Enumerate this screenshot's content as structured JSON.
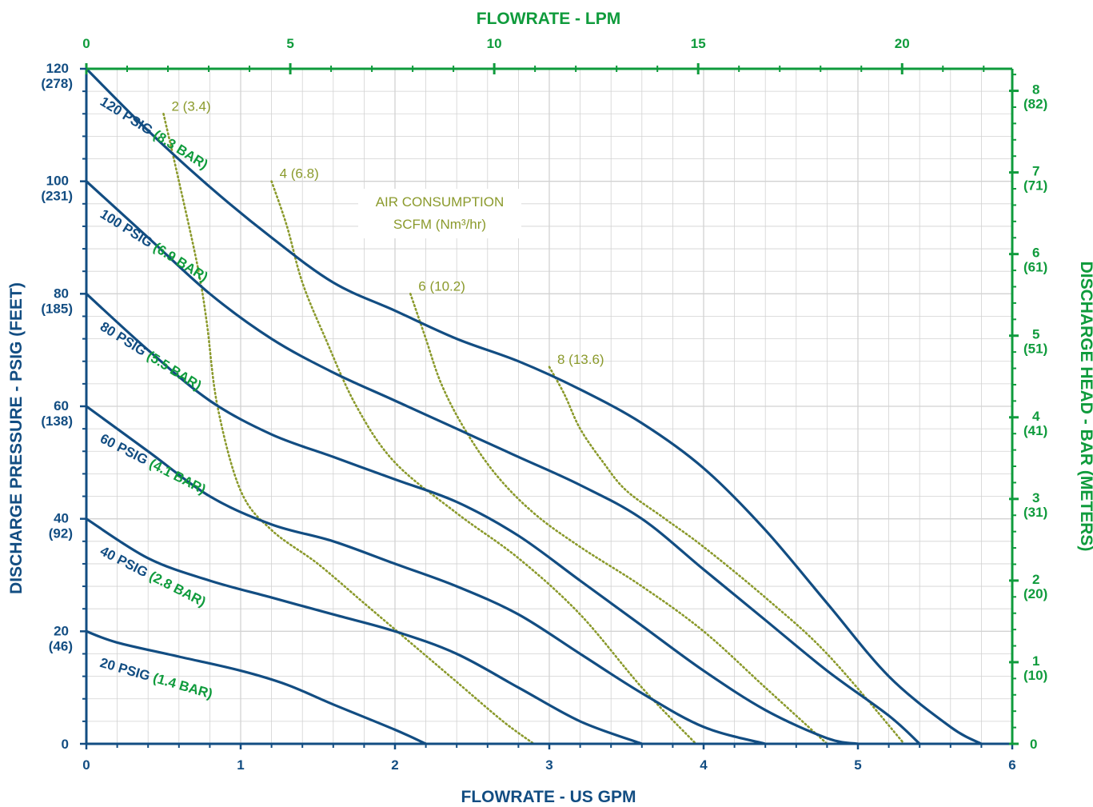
{
  "colors": {
    "blue": "#124d82",
    "green": "#0f9b3c",
    "olive": "#8b9a2c",
    "grid": "#d2d2d2"
  },
  "chart_data": {
    "type": "line",
    "xlabel": "FLOWRATE - US GPM",
    "x2label": "FLOWRATE - LPM",
    "ylabel": "DISCHARGE PRESSURE - PSIG (FEET)",
    "y2label": "DISCHARGE HEAD - BAR (METERS)",
    "xlim": [
      0,
      6
    ],
    "ylim": [
      0,
      120
    ],
    "x2lim": [
      0,
      22.7
    ],
    "y2lim": [
      0,
      8.27
    ],
    "grid": true,
    "x_ticks": [
      "0",
      "1",
      "2",
      "3",
      "4",
      "5",
      "6"
    ],
    "y_ticks": [
      {
        "value": 0,
        "line1": "0",
        "line2": ""
      },
      {
        "value": 20,
        "line1": "20",
        "line2": "(46)"
      },
      {
        "value": 40,
        "line1": "40",
        "line2": "(92)"
      },
      {
        "value": 60,
        "line1": "60",
        "line2": "(138)"
      },
      {
        "value": 80,
        "line1": "80",
        "line2": "(185)"
      },
      {
        "value": 100,
        "line1": "100",
        "line2": "(231)"
      },
      {
        "value": 120,
        "line1": "120",
        "line2": "(278)"
      }
    ],
    "x2_ticks": [
      "0",
      "5",
      "10",
      "15",
      "20"
    ],
    "y2_ticks": [
      {
        "value": 0,
        "line1": "0",
        "line2": ""
      },
      {
        "value": 1,
        "line1": "1",
        "line2": "(10)"
      },
      {
        "value": 2,
        "line1": "2",
        "line2": "(20)"
      },
      {
        "value": 3,
        "line1": "3",
        "line2": "(31)"
      },
      {
        "value": 4,
        "line1": "4",
        "line2": "(41)"
      },
      {
        "value": 5,
        "line1": "5",
        "line2": "(51)"
      },
      {
        "value": 6,
        "line1": "6",
        "line2": "(61)"
      },
      {
        "value": 7,
        "line1": "7",
        "line2": "(71)"
      },
      {
        "value": 8,
        "line1": "8",
        "line2": "(82)"
      }
    ],
    "series": [
      {
        "psig": "120 PSIG",
        "bar": "(8.3 BAR)",
        "x": [
          0,
          0.4,
          0.8,
          1.2,
          1.6,
          2.0,
          2.4,
          2.8,
          3.2,
          3.6,
          4.0,
          4.4,
          4.8,
          5.2,
          5.6,
          5.8
        ],
        "y": [
          120,
          109,
          99,
          90,
          82,
          77,
          72,
          68,
          63,
          57,
          49,
          38,
          25,
          12,
          3,
          0
        ]
      },
      {
        "psig": "100 PSIG",
        "bar": "(6.9 BAR)",
        "x": [
          0,
          0.4,
          0.8,
          1.2,
          1.6,
          2.0,
          2.4,
          2.8,
          3.2,
          3.6,
          4.0,
          4.4,
          4.8,
          5.2,
          5.4
        ],
        "y": [
          100,
          90,
          80,
          72,
          66,
          61,
          56,
          51,
          46,
          40,
          31,
          22,
          13,
          5,
          0
        ]
      },
      {
        "psig": "80 PSIG",
        "bar": "(5.5 BAR)",
        "x": [
          0,
          0.4,
          0.8,
          1.2,
          1.6,
          2.0,
          2.4,
          2.8,
          3.2,
          3.6,
          4.0,
          4.4,
          4.8,
          5.0
        ],
        "y": [
          80,
          70,
          61,
          55,
          51,
          47,
          43,
          37,
          29,
          21,
          13,
          6,
          1,
          0
        ]
      },
      {
        "psig": "60 PSIG",
        "bar": "(4.1 BAR)",
        "x": [
          0,
          0.4,
          0.8,
          1.2,
          1.6,
          2.0,
          2.4,
          2.8,
          3.2,
          3.6,
          4.0,
          4.4
        ],
        "y": [
          60,
          52,
          44,
          39,
          36,
          32,
          28,
          23,
          16,
          9,
          3,
          0
        ]
      },
      {
        "psig": "40 PSIG",
        "bar": "(2.8 BAR)",
        "x": [
          0,
          0.4,
          0.8,
          1.2,
          1.6,
          2.0,
          2.4,
          2.8,
          3.2,
          3.6
        ],
        "y": [
          40,
          33,
          29,
          26,
          23,
          20,
          16,
          10,
          4,
          0
        ]
      },
      {
        "psig": "20 PSIG",
        "bar": "(1.4 BAR)",
        "x": [
          0,
          0.2,
          0.6,
          1.0,
          1.3,
          1.6,
          2.0,
          2.2
        ],
        "y": [
          20,
          18,
          15.5,
          13,
          10.5,
          7,
          2.5,
          0
        ]
      }
    ],
    "air_consumption": {
      "title_line1": "AIR CONSUMPTION",
      "title_line2": "SCFM (Nm³/hr)",
      "curves": [
        {
          "label": "2 (3.4)",
          "x": [
            0.5,
            0.6,
            0.72,
            0.78,
            0.85,
            1.0,
            1.2,
            1.5,
            1.8,
            2.1,
            2.4,
            2.7,
            2.9
          ],
          "y": [
            112,
            100,
            85,
            75,
            60,
            45,
            38,
            32,
            25,
            18,
            11,
            4,
            0
          ]
        },
        {
          "label": "4 (6.8)",
          "x": [
            1.2,
            1.3,
            1.4,
            1.55,
            1.75,
            2.0,
            2.4,
            2.8,
            3.2,
            3.6,
            3.95
          ],
          "y": [
            100,
            92,
            82,
            72,
            60,
            50,
            41,
            33,
            23,
            10,
            0
          ]
        },
        {
          "label": "6 (10.2)",
          "x": [
            2.1,
            2.2,
            2.3,
            2.45,
            2.65,
            2.9,
            3.2,
            3.6,
            4.0,
            4.4,
            4.8
          ],
          "y": [
            80,
            72,
            64,
            56,
            48,
            41,
            35,
            28,
            20,
            10,
            0
          ]
        },
        {
          "label": "8 (13.6)",
          "x": [
            3.0,
            3.1,
            3.2,
            3.35,
            3.5,
            3.75,
            4.0,
            4.4,
            4.8,
            5.3
          ],
          "y": [
            67,
            62,
            56,
            50,
            45,
            40,
            35,
            26,
            16,
            0
          ]
        }
      ]
    }
  }
}
